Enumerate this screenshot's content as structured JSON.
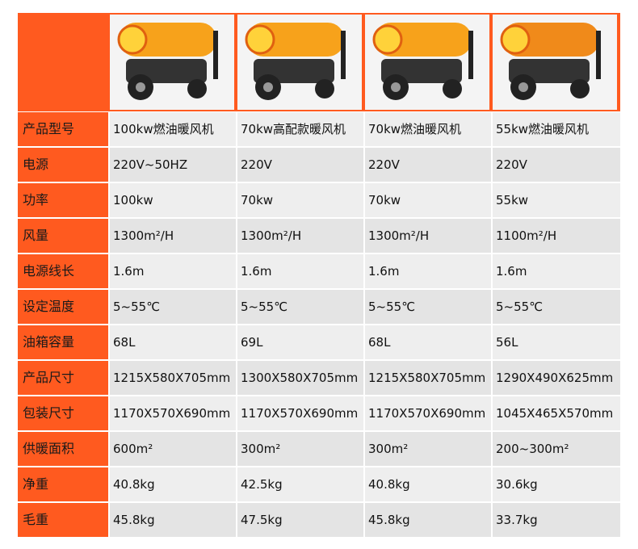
{
  "table": {
    "rows": [
      [
        "产品型号",
        "100kw燃油暖风机",
        "70kw高配款暖风机",
        "70kw燃油暖风机",
        "55kw燃油暖风机"
      ],
      [
        "电源",
        "220V~50HZ",
        "220V",
        "220V",
        "220V"
      ],
      [
        "功率",
        "100kw",
        "70kw",
        "70kw",
        "55kw"
      ],
      [
        "风量",
        "1300m²/H",
        "1300m²/H",
        "1300m²/H",
        "1100m²/H"
      ],
      [
        "电源线长",
        "1.6m",
        "1.6m",
        "1.6m",
        "1.6m"
      ],
      [
        "设定温度",
        "5~55℃",
        "5~55℃",
        "5~55℃",
        "5~55℃"
      ],
      [
        "油箱容量",
        "68L",
        "69L",
        "68L",
        "56L"
      ],
      [
        "产品尺寸",
        "1215X580X705mm",
        "1300X580X705mm",
        "1215X580X705mm",
        "1290X490X625mm"
      ],
      [
        "包装尺寸",
        "1170X570X690mm",
        "1170X570X690mm",
        "1170X570X690mm",
        "1045X465X570mm"
      ],
      [
        "供暖面积",
        "600m²",
        "300m²",
        "300m²",
        "200~300m²"
      ],
      [
        "净重",
        "40.8kg",
        "42.5kg",
        "40.8kg",
        "30.6kg"
      ],
      [
        "毛重",
        "45.8kg",
        "47.5kg",
        "45.8kg",
        "33.7kg"
      ]
    ]
  }
}
